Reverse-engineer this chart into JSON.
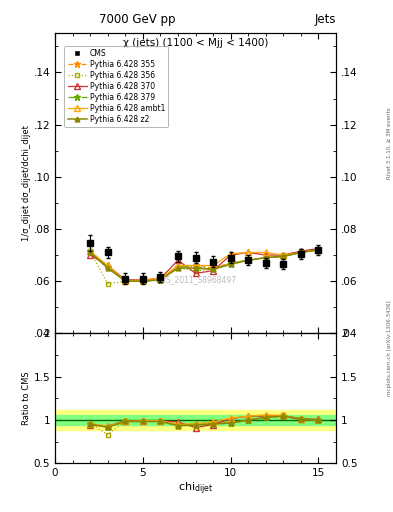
{
  "title_main": "7000 GeV pp",
  "title_right": "Jets",
  "plot_title": "χ (jets) (1100 < Mjj < 1400)",
  "watermark": "CMS_2011_S8968497",
  "right_label": "mcplots.cern.ch [arXiv:1306.3436]",
  "rivet_label": "Rivet 3.1.10, ≥ 3M events",
  "xlabel": "chi_dijet",
  "ylabel_main": "1/σ_dijet dσ_dijet/dchi_dijet",
  "ylabel_ratio": "Ratio to CMS",
  "xlim": [
    0,
    16
  ],
  "ylim_main": [
    0.04,
    0.155
  ],
  "ylim_ratio": [
    0.5,
    2.0
  ],
  "yticks_main": [
    0.04,
    0.06,
    0.08,
    0.1,
    0.12,
    0.14
  ],
  "yticks_ratio": [
    0.5,
    1.0,
    1.5,
    2.0
  ],
  "xticks": [
    0,
    5,
    10,
    15
  ],
  "cms_x": [
    2,
    3,
    4,
    5,
    6,
    7,
    8,
    9,
    10,
    11,
    12,
    13,
    14,
    15
  ],
  "cms_y": [
    0.0745,
    0.071,
    0.061,
    0.061,
    0.0615,
    0.0695,
    0.069,
    0.0675,
    0.069,
    0.068,
    0.067,
    0.0665,
    0.0705,
    0.072
  ],
  "cms_yerr": [
    0.003,
    0.002,
    0.002,
    0.002,
    0.002,
    0.002,
    0.002,
    0.002,
    0.002,
    0.002,
    0.002,
    0.002,
    0.002,
    0.002
  ],
  "p355_x": [
    2,
    3,
    4,
    5,
    6,
    7,
    8,
    9,
    10,
    11,
    12,
    13,
    14,
    15
  ],
  "p355_y": [
    0.071,
    0.0655,
    0.06,
    0.06,
    0.0605,
    0.0655,
    0.066,
    0.065,
    0.067,
    0.068,
    0.069,
    0.0695,
    0.071,
    0.072
  ],
  "p356_x": [
    2,
    3,
    4,
    5,
    6,
    7,
    8,
    9,
    10,
    11,
    12,
    13,
    14,
    15
  ],
  "p356_y": [
    0.0715,
    0.059,
    0.06,
    0.0605,
    0.061,
    0.065,
    0.064,
    0.0645,
    0.067,
    0.068,
    0.069,
    0.07,
    0.0715,
    0.072
  ],
  "p370_x": [
    2,
    3,
    4,
    5,
    6,
    7,
    8,
    9,
    10,
    11,
    12,
    13,
    14,
    15
  ],
  "p370_y": [
    0.07,
    0.066,
    0.0605,
    0.0605,
    0.061,
    0.068,
    0.063,
    0.064,
    0.07,
    0.071,
    0.07,
    0.07,
    0.0715,
    0.0725
  ],
  "p379_x": [
    2,
    3,
    4,
    5,
    6,
    7,
    8,
    9,
    10,
    11,
    12,
    13,
    14,
    15
  ],
  "p379_y": [
    0.0715,
    0.0655,
    0.06,
    0.06,
    0.0605,
    0.0655,
    0.0655,
    0.0645,
    0.0665,
    0.068,
    0.069,
    0.0695,
    0.071,
    0.072
  ],
  "pambt1_x": [
    2,
    3,
    4,
    5,
    6,
    7,
    8,
    9,
    10,
    11,
    12,
    13,
    14,
    15
  ],
  "pambt1_y": [
    0.0715,
    0.066,
    0.06,
    0.0605,
    0.061,
    0.066,
    0.066,
    0.066,
    0.0705,
    0.071,
    0.071,
    0.07,
    0.071,
    0.072
  ],
  "pz2_x": [
    2,
    3,
    4,
    5,
    6,
    7,
    8,
    9,
    10,
    11,
    12,
    13,
    14,
    15
  ],
  "pz2_y": [
    0.071,
    0.065,
    0.06,
    0.06,
    0.0605,
    0.065,
    0.065,
    0.0645,
    0.0665,
    0.068,
    0.069,
    0.0695,
    0.071,
    0.072
  ],
  "color_355": "#FF8C00",
  "color_356": "#AAAA00",
  "color_370": "#CC3333",
  "color_379": "#66AA00",
  "color_ambt1": "#FFA500",
  "color_z2": "#888800",
  "color_cms": "#000000",
  "ratio_band_yellow": "#FFFF80",
  "ratio_band_green": "#80FF80",
  "ratio_line_color": "#006600"
}
